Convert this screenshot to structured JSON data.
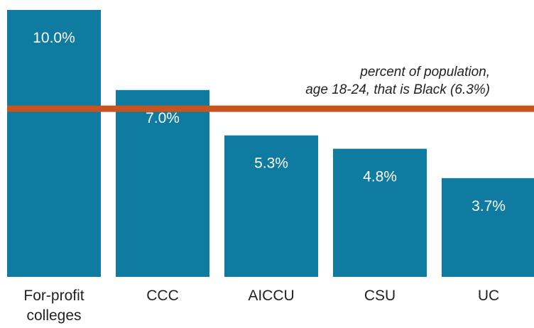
{
  "chart_data": {
    "type": "bar",
    "categories": [
      [
        "For-profit",
        "colleges"
      ],
      [
        "CCC"
      ],
      [
        "AICCU"
      ],
      [
        "CSU"
      ],
      [
        "UC"
      ]
    ],
    "values": [
      10.0,
      7.0,
      5.3,
      4.8,
      3.7
    ],
    "value_labels": [
      "10.0%",
      "7.0%",
      "5.3%",
      "4.8%",
      "3.7%"
    ],
    "ylim": [
      0,
      10.0
    ],
    "reference_line": {
      "value": 6.3,
      "label_lines": [
        "percent of population,",
        "age 18-24, that is Black (6.3%)"
      ]
    },
    "colors": {
      "bar": "#0f7ba1",
      "reference_line": "#c8541f"
    },
    "grid": false,
    "legend": "none"
  }
}
